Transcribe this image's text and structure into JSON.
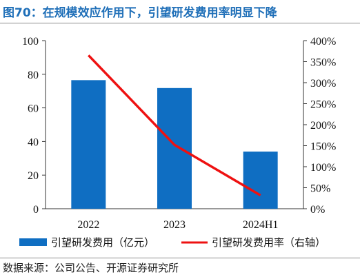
{
  "header": {
    "title": "图70：在规模效应作用下，引望研发费用率明显下降"
  },
  "footer": {
    "source": "数据来源：公司公告、开源证券研究所"
  },
  "chart_data": {
    "type": "bar",
    "categories": [
      "2022",
      "2023",
      "2024H1"
    ],
    "series": [
      {
        "name": "引望研发费用（亿元）",
        "type": "bar",
        "axis": "left",
        "color": "#0f6ec2",
        "values": [
          76.5,
          71.8,
          34.0
        ]
      },
      {
        "name": "引望研发费用率（右轴）",
        "type": "line",
        "axis": "right",
        "color": "#ee1111",
        "values": [
          365,
          152,
          32
        ]
      }
    ],
    "y_left": {
      "min": 0,
      "max": 100,
      "ticks": [
        "0",
        "20",
        "40",
        "60",
        "80",
        "100"
      ]
    },
    "y_right": {
      "min": 0,
      "max": 400,
      "ticks": [
        "0%",
        "50%",
        "100%",
        "150%",
        "200%",
        "250%",
        "300%",
        "350%",
        "400%"
      ]
    },
    "grid": false,
    "legend_position": "bottom"
  }
}
